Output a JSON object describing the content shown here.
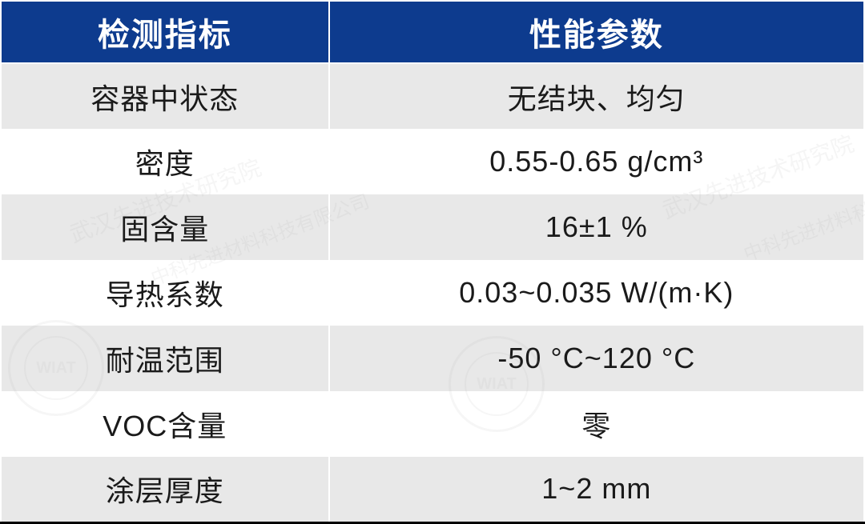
{
  "table": {
    "header_bg_color": "#0d3b8e",
    "header_text_color": "#ffffff",
    "row_odd_bg": "#e8e8e8",
    "row_even_bg": "#ffffff",
    "border_color": "#ffffff",
    "bottom_border_color": "#000000",
    "header_fontsize": 40,
    "cell_fontsize": 36,
    "cell_text_color": "#1a1a1a",
    "columns": [
      {
        "label": "检测指标",
        "width": "38%"
      },
      {
        "label": "性能参数",
        "width": "62%"
      }
    ],
    "rows": [
      {
        "metric": "容器中状态",
        "value": "无结块、均匀"
      },
      {
        "metric": "密度",
        "value": "0.55-0.65 g/cm³"
      },
      {
        "metric": "固含量",
        "value": "16±1 %"
      },
      {
        "metric": "导热系数",
        "value": "0.03~0.035 W/(m·K)"
      },
      {
        "metric": "耐温范围",
        "value": "-50 °C~120 °C"
      },
      {
        "metric": "VOC含量",
        "value": "零"
      },
      {
        "metric": "涂层厚度",
        "value": "1~2 mm"
      }
    ]
  },
  "watermark": {
    "text1": "武汉先进技术研究院",
    "text2": "中科先进材料科技有限公司",
    "seal_text": "WIAT"
  }
}
